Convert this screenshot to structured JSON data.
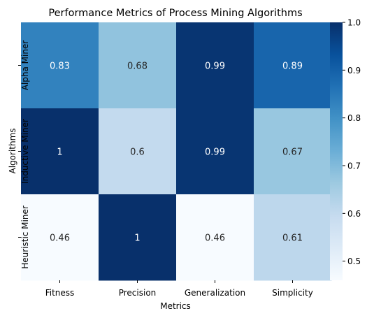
{
  "chart_data": {
    "type": "heatmap",
    "title": "Performance Metrics of Process Mining Algorithms",
    "xlabel": "Metrics",
    "ylabel": "Algorithms",
    "x_categories": [
      "Fitness",
      "Precision",
      "Generalization",
      "Simplicity"
    ],
    "y_categories": [
      "Alpha Miner",
      "Inductive Miner",
      "Heuristic Miner"
    ],
    "values": [
      [
        0.83,
        0.68,
        0.99,
        0.89
      ],
      [
        1,
        0.6,
        0.99,
        0.67
      ],
      [
        0.46,
        1,
        0.46,
        0.61
      ]
    ],
    "colormap": "Blues",
    "vmin": 0.46,
    "vmax": 1.0,
    "colorbar_ticks": [
      0.5,
      0.6,
      0.7,
      0.8,
      0.9,
      1.0
    ],
    "colorbar_tick_labels": [
      "0.5",
      "0.6",
      "0.7",
      "0.8",
      "0.9",
      "1.0"
    ]
  }
}
